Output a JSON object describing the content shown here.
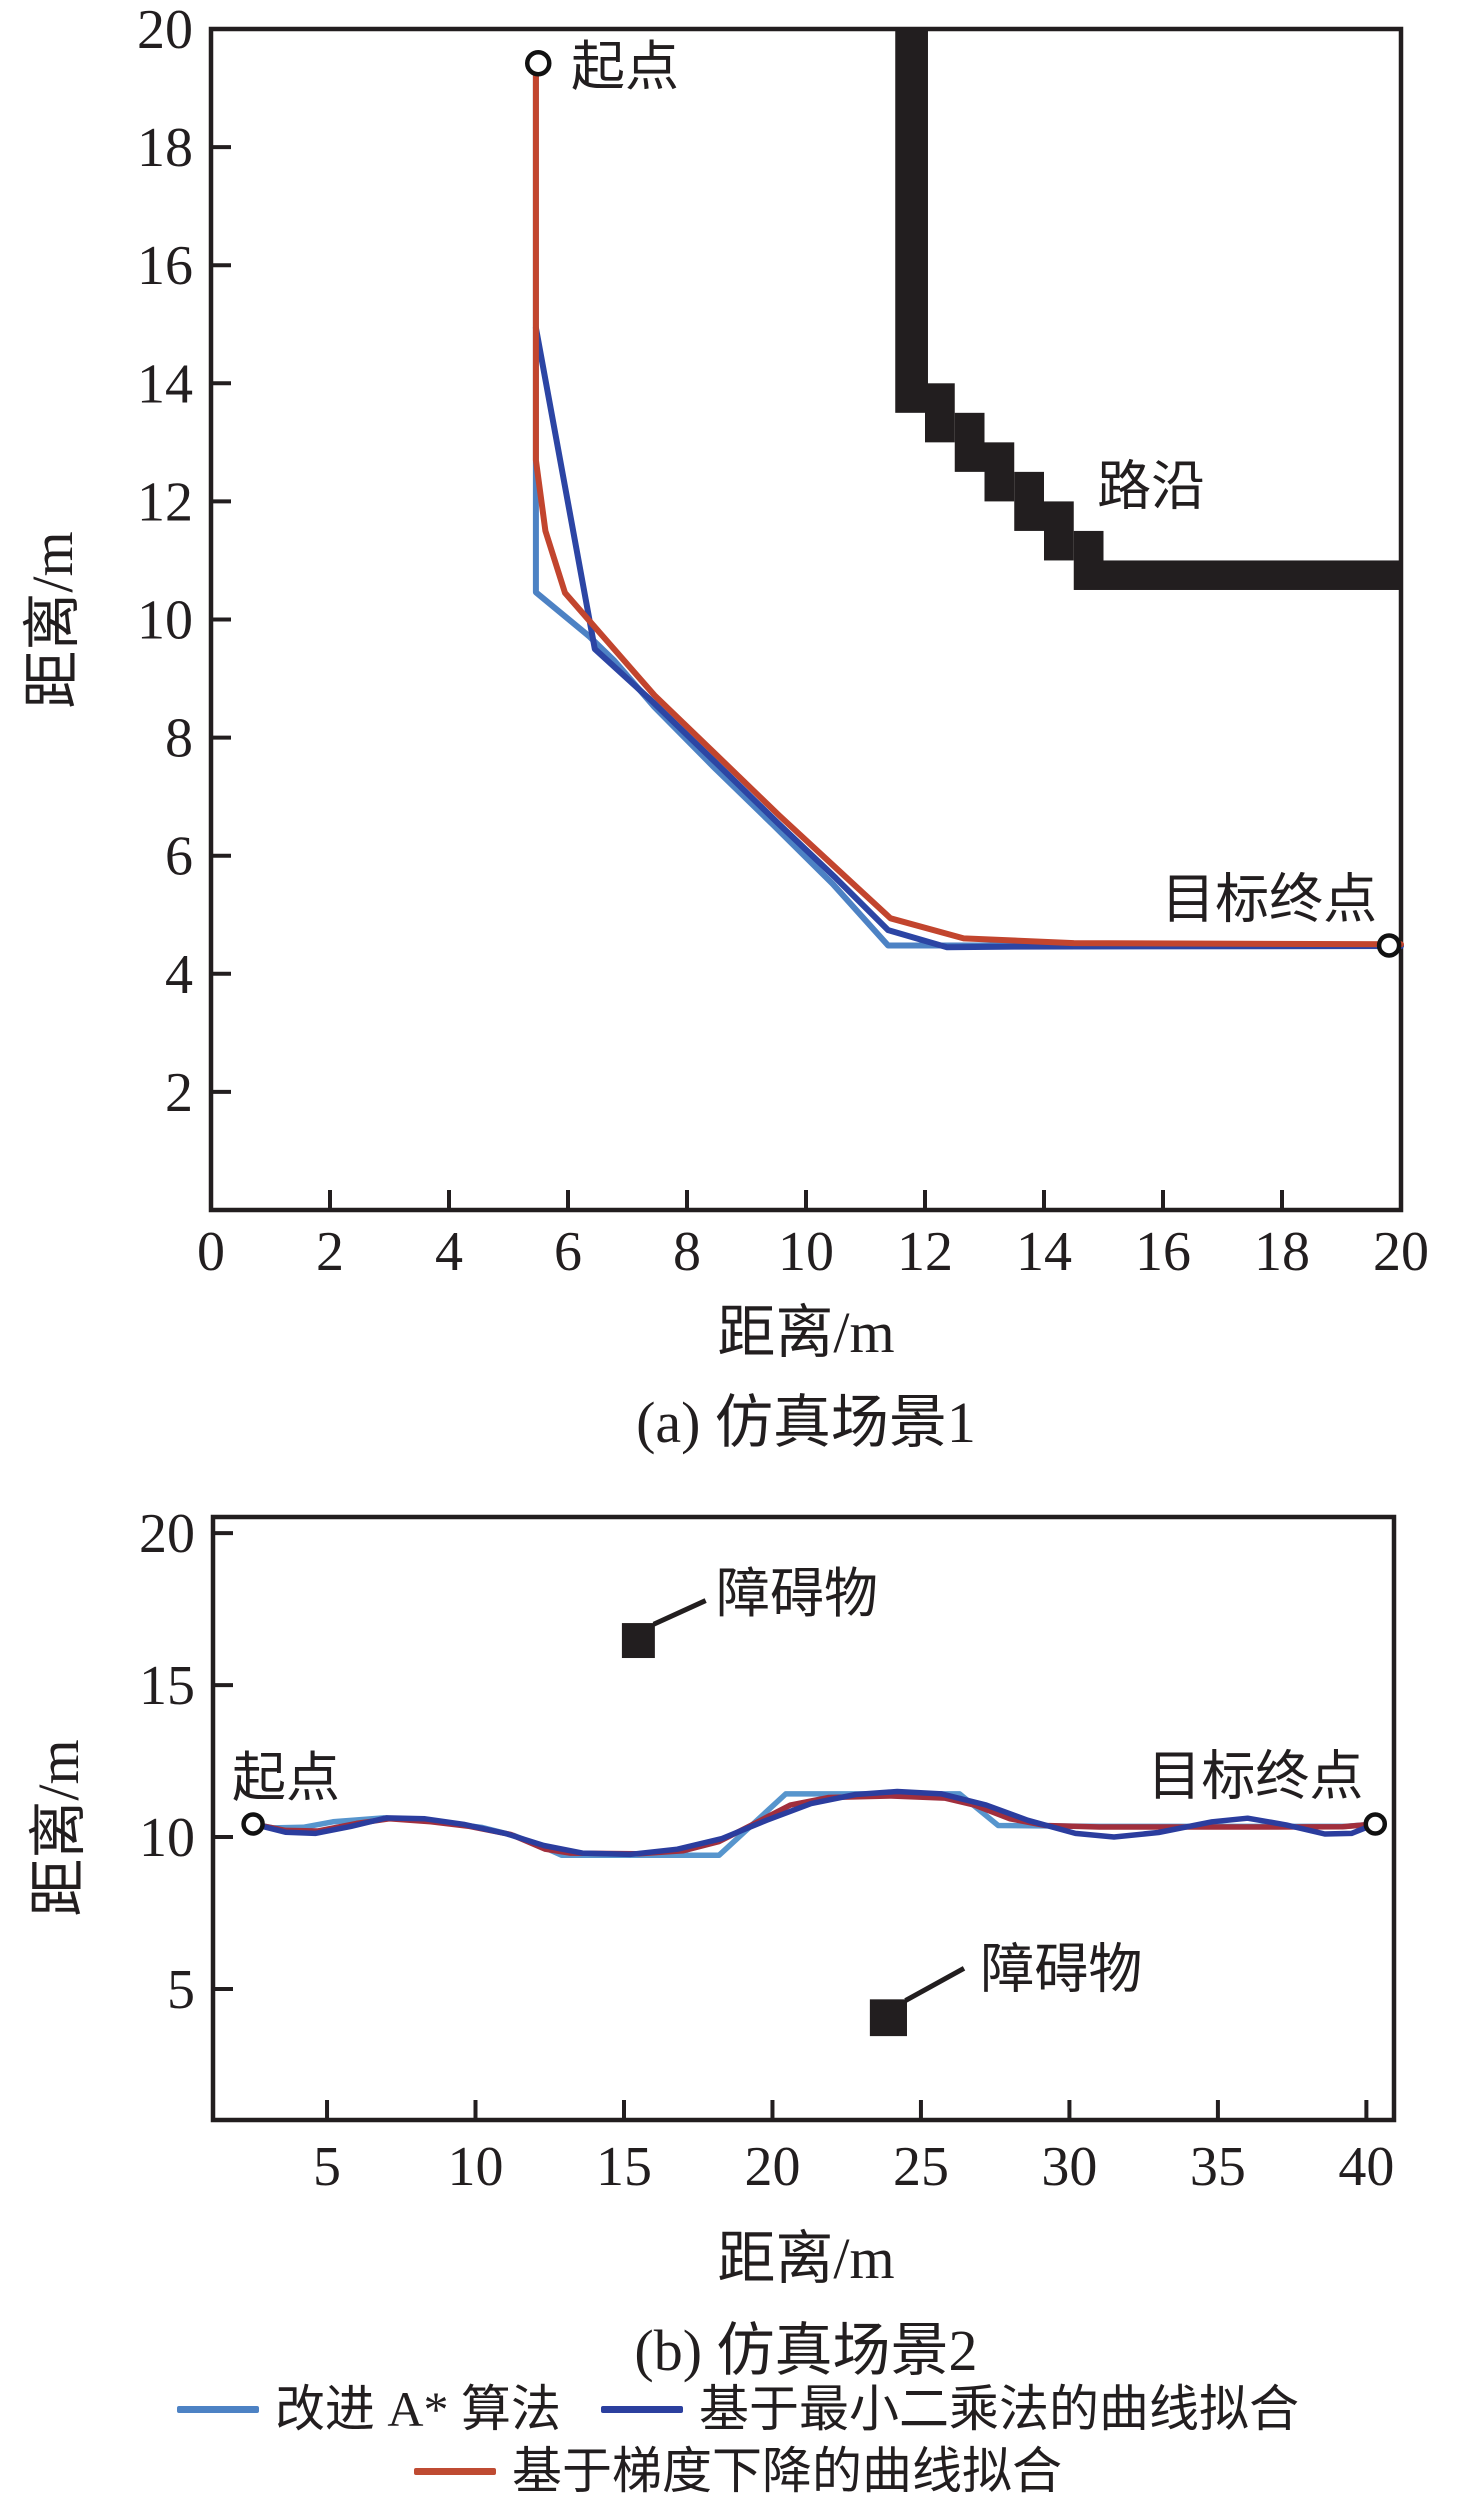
{
  "figure": {
    "background": "#ffffff",
    "axis_color": "#221e1f",
    "obstacle_color": "#221e1f",
    "marker_fill": "#ffffff",
    "marker_stroke": "#111111"
  },
  "chart_data": [
    {
      "type": "line",
      "caption": "(a) 仿真场景1",
      "xlabel": "距离/m",
      "ylabel": "距离/m",
      "xlim": [
        0,
        20
      ],
      "ylim": [
        0,
        20
      ],
      "grid": false,
      "legend_position": "figure-bottom",
      "x_ticks": [
        0,
        2,
        4,
        6,
        8,
        10,
        12,
        14,
        16,
        18,
        20
      ],
      "y_ticks": [
        2,
        4,
        6,
        8,
        10,
        12,
        14,
        16,
        18,
        20
      ],
      "series": [
        {
          "name": "改进 A* 算法",
          "color": "#4d82c4",
          "width": 6,
          "points": [
            [
              5.46,
              19.42
            ],
            [
              5.46,
              10.46
            ],
            [
              6.35,
              9.72
            ],
            [
              6.78,
              9.3
            ],
            [
              7.45,
              8.52
            ],
            [
              8.45,
              7.5
            ],
            [
              9.45,
              6.52
            ],
            [
              10.45,
              5.52
            ],
            [
              11.38,
              4.48
            ],
            [
              20,
              4.48
            ]
          ]
        },
        {
          "name": "基于最小二乘法的曲线拟合",
          "color": "#2c45a4",
          "width": 6,
          "points": [
            [
              5.46,
              14.94
            ],
            [
              6.45,
              9.5
            ],
            [
              7.43,
              8.6
            ],
            [
              8.48,
              7.58
            ],
            [
              9.53,
              6.55
            ],
            [
              10.5,
              5.62
            ],
            [
              11.38,
              4.74
            ],
            [
              12.37,
              4.45
            ],
            [
              13.5,
              4.46
            ],
            [
              20,
              4.47
            ]
          ]
        },
        {
          "name": "基于梯度下降的曲线拟合",
          "color": "#c2452e",
          "width": 6,
          "points": [
            [
              5.46,
              19.42
            ],
            [
              5.46,
              12.7
            ],
            [
              5.62,
              11.5
            ],
            [
              5.95,
              10.45
            ],
            [
              6.6,
              9.7
            ],
            [
              7.45,
              8.72
            ],
            [
              8.5,
              7.7
            ],
            [
              9.55,
              6.68
            ],
            [
              10.55,
              5.75
            ],
            [
              11.42,
              4.94
            ],
            [
              12.65,
              4.6
            ],
            [
              14.5,
              4.52
            ],
            [
              20,
              4.5
            ]
          ]
        }
      ],
      "obstacle": {
        "label": "路沿",
        "rects": [
          [
            11.5,
            13.5,
            12.05,
            20
          ],
          [
            12.0,
            13.0,
            12.5,
            14.0
          ],
          [
            12.5,
            12.5,
            13.0,
            13.5
          ],
          [
            13.0,
            12.0,
            13.5,
            13.0
          ],
          [
            13.5,
            11.5,
            14.0,
            12.5
          ],
          [
            14.0,
            11.0,
            14.5,
            12.0
          ],
          [
            14.5,
            10.5,
            15.0,
            11.5
          ],
          [
            15.0,
            10.5,
            20.0,
            11.0
          ]
        ],
        "leaders": []
      },
      "markers": [
        {
          "label": "起点",
          "pos": [
            5.5,
            19.42
          ],
          "r": 11
        },
        {
          "label": "目标终点",
          "pos": [
            19.8,
            4.48
          ],
          "r": 10
        }
      ],
      "annotations": [
        {
          "text": "起点",
          "x": 6.05,
          "y": 19.05,
          "anchor": "start"
        },
        {
          "text": "目标终点",
          "x": 19.6,
          "y": 4.95,
          "anchor": "end"
        },
        {
          "text": "路沿",
          "x": 15.8,
          "y": 11.95,
          "anchor": "middle"
        }
      ]
    },
    {
      "type": "line",
      "caption": "(b) 仿真场景2",
      "xlabel": "距离/m",
      "ylabel": "距离/m",
      "xlim": [
        1.16,
        40.93
      ],
      "ylim": [
        0.69,
        20.53
      ],
      "grid": false,
      "legend_position": "figure-bottom",
      "x_ticks": [
        5,
        10,
        15,
        20,
        25,
        30,
        35,
        40
      ],
      "y_ticks": [
        5,
        10,
        15,
        20
      ],
      "series": [
        {
          "name": "改进 A* 算法",
          "color": "#5795cd",
          "width": 5.5,
          "points": [
            [
              2.51,
              10.43
            ],
            [
              3.2,
              10.3
            ],
            [
              4.2,
              10.32
            ],
            [
              5.2,
              10.5
            ],
            [
              6.9,
              10.63
            ],
            [
              8.5,
              10.52
            ],
            [
              10.2,
              10.32
            ],
            [
              11.3,
              10.05
            ],
            [
              12.4,
              9.62
            ],
            [
              12.9,
              9.4
            ],
            [
              18.2,
              9.4
            ],
            [
              20.45,
              11.42
            ],
            [
              26.3,
              11.42
            ],
            [
              27.6,
              10.38
            ],
            [
              31,
              10.35
            ],
            [
              35,
              10.35
            ],
            [
              39.3,
              10.35
            ],
            [
              40.3,
              10.43
            ]
          ]
        },
        {
          "name": "基于梯度下降的曲线拟合",
          "color": "#a12f3d",
          "width": 5.5,
          "points": [
            [
              2.51,
              10.43
            ],
            [
              3.6,
              10.22
            ],
            [
              4.7,
              10.2
            ],
            [
              6.0,
              10.45
            ],
            [
              7.1,
              10.6
            ],
            [
              8.5,
              10.5
            ],
            [
              9.8,
              10.35
            ],
            [
              11.2,
              10.08
            ],
            [
              12.35,
              9.6
            ],
            [
              13.2,
              9.47
            ],
            [
              15.5,
              9.45
            ],
            [
              17.0,
              9.55
            ],
            [
              18.2,
              9.85
            ],
            [
              19.4,
              10.45
            ],
            [
              20.6,
              11.05
            ],
            [
              21.9,
              11.3
            ],
            [
              24.0,
              11.35
            ],
            [
              25.8,
              11.28
            ],
            [
              26.8,
              11.05
            ],
            [
              28.0,
              10.6
            ],
            [
              29.2,
              10.38
            ],
            [
              31.0,
              10.33
            ],
            [
              34.0,
              10.33
            ],
            [
              37.0,
              10.33
            ],
            [
              39.2,
              10.34
            ],
            [
              40.3,
              10.43
            ]
          ]
        },
        {
          "name": "基于最小二乘法的曲线拟合",
          "color": "#2b3d9e",
          "width": 5.5,
          "points": [
            [
              2.51,
              10.43
            ],
            [
              3.6,
              10.16
            ],
            [
              4.6,
              10.12
            ],
            [
              5.8,
              10.35
            ],
            [
              7.0,
              10.63
            ],
            [
              8.3,
              10.6
            ],
            [
              9.6,
              10.42
            ],
            [
              11.0,
              10.12
            ],
            [
              12.3,
              9.72
            ],
            [
              13.6,
              9.47
            ],
            [
              15.2,
              9.43
            ],
            [
              16.8,
              9.6
            ],
            [
              18.3,
              9.95
            ],
            [
              19.8,
              10.55
            ],
            [
              21.3,
              11.1
            ],
            [
              22.8,
              11.4
            ],
            [
              24.2,
              11.5
            ],
            [
              25.7,
              11.42
            ],
            [
              27.2,
              11.05
            ],
            [
              28.6,
              10.55
            ],
            [
              30.2,
              10.12
            ],
            [
              31.5,
              10.0
            ],
            [
              33.0,
              10.15
            ],
            [
              34.8,
              10.5
            ],
            [
              36.0,
              10.62
            ],
            [
              37.3,
              10.4
            ],
            [
              38.6,
              10.1
            ],
            [
              39.5,
              10.12
            ],
            [
              40.3,
              10.43
            ]
          ]
        }
      ],
      "obstacle": {
        "label": "障碍物",
        "rects": [
          [
            14.93,
            15.89,
            16.04,
            17.04
          ],
          [
            23.28,
            3.45,
            24.53,
            4.66
          ]
        ],
        "leaders": [
          [
            16.0,
            17.0,
            17.75,
            17.78
          ],
          [
            24.48,
            4.62,
            26.45,
            5.68
          ]
        ]
      },
      "markers": [
        {
          "label": "起点",
          "pos": [
            2.51,
            10.43
          ],
          "r": 9.5
        },
        {
          "label": "目标终点",
          "pos": [
            40.3,
            10.43
          ],
          "r": 9.5
        }
      ],
      "annotations": [
        {
          "text": "起点",
          "x": 1.8,
          "y": 11.35,
          "anchor": "start"
        },
        {
          "text": "目标终点",
          "x": 39.9,
          "y": 11.4,
          "anchor": "end"
        },
        {
          "text": "障碍物",
          "x": 18.1,
          "y": 17.4,
          "anchor": "start"
        },
        {
          "text": "障碍物",
          "x": 27.0,
          "y": 5.05,
          "anchor": "start"
        }
      ]
    }
  ],
  "legend": {
    "rows": [
      [
        {
          "label": "改进 A* 算法",
          "color": "#4d82c4"
        },
        {
          "label": "基于最小二乘法的曲线拟合",
          "color": "#2b3f9e"
        }
      ],
      [
        {
          "label": "基于梯度下降的曲线拟合",
          "color": "#bf4b32"
        }
      ]
    ]
  }
}
